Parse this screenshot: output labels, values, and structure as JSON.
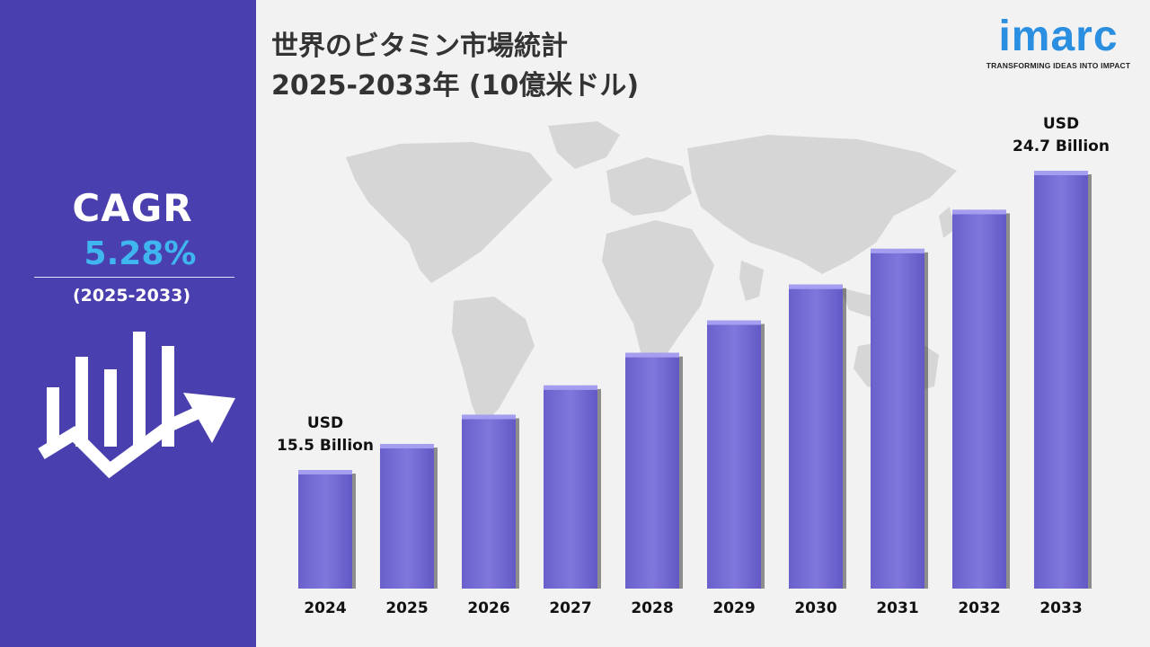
{
  "title_line1": "世界のビタミン市場統計",
  "title_line2": "2025-2033年 (10億米ドル)",
  "logo": {
    "wordmark": "imarc",
    "tagline": "TRANSFORMING IDEAS INTO IMPACT",
    "color": "#2a8fe0"
  },
  "cagr": {
    "label": "CAGR",
    "value": "5.28%",
    "period": "(2025-2033)"
  },
  "colors": {
    "sidebar": "#4a3fae",
    "bar": "#7b72d8",
    "bar_top": "#a59ef0",
    "accent": "#3fb6f0"
  },
  "chart_data": {
    "type": "bar",
    "categories": [
      "2024",
      "2025",
      "2026",
      "2027",
      "2028",
      "2029",
      "2030",
      "2031",
      "2032",
      "2033"
    ],
    "values": [
      15.5,
      16.3,
      17.2,
      18.1,
      19.1,
      20.1,
      21.2,
      22.3,
      23.5,
      24.7
    ],
    "data_labels": [
      {
        "index": 0,
        "lines": [
          "USD",
          "15.5 Billion"
        ]
      },
      {
        "index": 9,
        "lines": [
          "USD",
          "24.7 Billion"
        ]
      }
    ],
    "ylim": [
      0,
      26
    ],
    "grid": false,
    "axis_visible": false
  }
}
